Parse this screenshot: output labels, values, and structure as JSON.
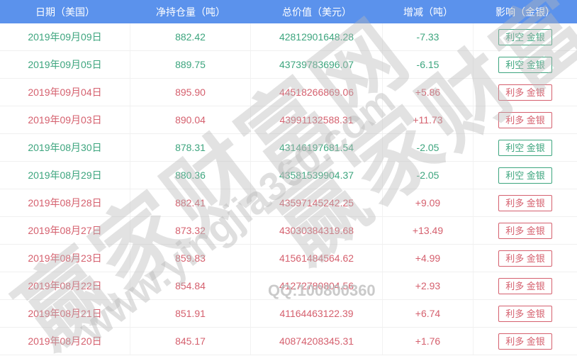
{
  "colors": {
    "header_background": "#5b92ec",
    "header_text": "#ffffff",
    "bullish_red": "#d5606e",
    "bearish_green": "#3da57e",
    "separator": "#f0f0f0",
    "watermark_gray": "#b9b9b9"
  },
  "table": {
    "columns": [
      {
        "label": "日期（美国）"
      },
      {
        "label": "净持仓量（吨）"
      },
      {
        "label": "总价值（美元）"
      },
      {
        "label": "增减（吨）"
      },
      {
        "label": "影响（金银）"
      }
    ],
    "rows": [
      {
        "date": "2019年09月09日",
        "holdings": "882.42",
        "value": "42812901648.28",
        "change": "-7.33",
        "impact": "利空 金银",
        "direction": "down"
      },
      {
        "date": "2019年09月05日",
        "holdings": "889.75",
        "value": "43739783696.07",
        "change": "-6.15",
        "impact": "利空 金银",
        "direction": "down"
      },
      {
        "date": "2019年09月04日",
        "holdings": "895.90",
        "value": "44518266869.06",
        "change": "+5.86",
        "impact": "利多 金银",
        "direction": "up"
      },
      {
        "date": "2019年09月03日",
        "holdings": "890.04",
        "value": "43991132588.31",
        "change": "+11.73",
        "impact": "利多 金银",
        "direction": "up"
      },
      {
        "date": "2019年08月30日",
        "holdings": "878.31",
        "value": "43146197681.54",
        "change": "-2.05",
        "impact": "利空 金银",
        "direction": "down"
      },
      {
        "date": "2019年08月29日",
        "holdings": "880.36",
        "value": "43581539904.37",
        "change": "-2.05",
        "impact": "利空 金银",
        "direction": "down"
      },
      {
        "date": "2019年08月28日",
        "holdings": "882.41",
        "value": "43597145242.25",
        "change": "+9.09",
        "impact": "利多 金银",
        "direction": "up"
      },
      {
        "date": "2019年08月27日",
        "holdings": "873.32",
        "value": "43030384319.68",
        "change": "+13.49",
        "impact": "利多 金银",
        "direction": "up"
      },
      {
        "date": "2019年08月23日",
        "holdings": "859.83",
        "value": "41561484564.62",
        "change": "+4.99",
        "impact": "利多 金银",
        "direction": "up"
      },
      {
        "date": "2019年08月22日",
        "holdings": "854.84",
        "value": "41272780804.56",
        "change": "+2.93",
        "impact": "利多 金银",
        "direction": "up"
      },
      {
        "date": "2019年08月21日",
        "holdings": "851.91",
        "value": "41164463122.39",
        "change": "+6.74",
        "impact": "利多 金银",
        "direction": "up"
      },
      {
        "date": "2019年08月20日",
        "holdings": "845.17",
        "value": "40874208345.31",
        "change": "+1.76",
        "impact": "利多 金银",
        "direction": "up"
      }
    ]
  },
  "watermarks": {
    "brand_cn": "赢家财富网",
    "brand_url": "www.yingjia360.com",
    "qq": "QQ:100800360"
  }
}
